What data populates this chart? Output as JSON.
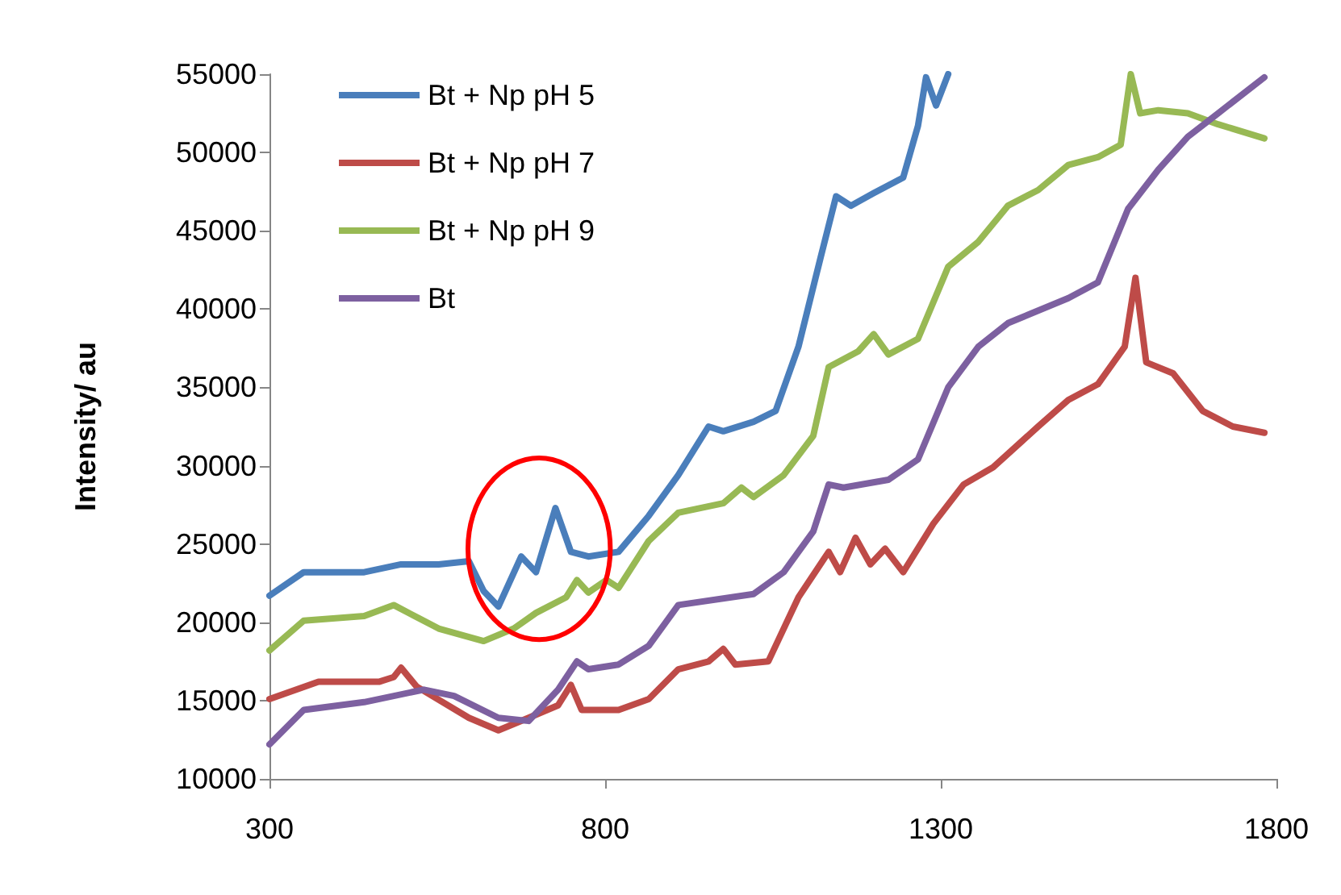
{
  "chart_data": {
    "type": "line",
    "ylabel": "Intensity/ au",
    "xlim": [
      300,
      1800
    ],
    "xticks": [
      300,
      800,
      1300,
      1800
    ],
    "ylim": [
      10000,
      55000
    ],
    "yticks": [
      10000,
      15000,
      20000,
      25000,
      30000,
      35000,
      40000,
      45000,
      50000,
      55000
    ],
    "grid": false,
    "legend": "top left",
    "marker": "none",
    "line_style": "solid",
    "series": [
      {
        "name": "Bt + Np pH 5",
        "color": "#4a7ebb",
        "x": [
          300,
          351,
          441,
          496,
          552,
          597,
          619,
          641,
          675,
          697,
          726,
          749,
          775,
          820,
          865,
          909,
          954,
          976,
          1021,
          1054,
          1088,
          1121,
          1144,
          1166,
          1200,
          1244,
          1266,
          1278,
          1293,
          1311
        ],
        "values": [
          21700,
          23200,
          23200,
          23700,
          23700,
          23900,
          22000,
          21000,
          24200,
          23200,
          27300,
          24500,
          24200,
          24500,
          26800,
          29400,
          32500,
          32200,
          32800,
          33500,
          37600,
          43300,
          47200,
          46600,
          47400,
          48400,
          51700,
          54800,
          53000,
          55000
        ]
      },
      {
        "name": "Bt + Np pH 7",
        "color": "#be4b48",
        "x": [
          300,
          373,
          463,
          485,
          496,
          519,
          597,
          641,
          686,
          730,
          749,
          765,
          820,
          865,
          909,
          954,
          976,
          994,
          1043,
          1088,
          1133,
          1150,
          1173,
          1195,
          1217,
          1244,
          1289,
          1334,
          1378,
          1445,
          1490,
          1534,
          1574,
          1590,
          1606,
          1646,
          1690,
          1735,
          1782
        ],
        "values": [
          15100,
          16200,
          16200,
          16500,
          17100,
          15900,
          13900,
          13100,
          13900,
          14700,
          16000,
          14400,
          14400,
          15100,
          17000,
          17500,
          18300,
          17300,
          17500,
          21600,
          24500,
          23200,
          25400,
          23700,
          24700,
          23200,
          26300,
          28800,
          29900,
          32500,
          34200,
          35200,
          37600,
          42000,
          36600,
          35900,
          33500,
          32500,
          32100
        ]
      },
      {
        "name": "Bt + Np pH 9",
        "color": "#98b954",
        "x": [
          300,
          351,
          441,
          485,
          552,
          619,
          664,
          697,
          742,
          758,
          775,
          802,
          820,
          865,
          909,
          976,
          1003,
          1021,
          1066,
          1110,
          1133,
          1177,
          1200,
          1222,
          1266,
          1311,
          1356,
          1400,
          1445,
          1490,
          1534,
          1568,
          1583,
          1597,
          1624,
          1668,
          1713,
          1782
        ],
        "values": [
          18200,
          20100,
          20400,
          21100,
          19600,
          18800,
          19600,
          20600,
          21600,
          22700,
          21900,
          22700,
          22200,
          25200,
          27000,
          27600,
          28600,
          28000,
          29400,
          31900,
          36300,
          37300,
          38400,
          37100,
          38100,
          42700,
          44300,
          46600,
          47600,
          49200,
          49700,
          50500,
          55000,
          52500,
          52700,
          52500,
          51800,
          50900
        ]
      },
      {
        "name": "Bt",
        "color": "#7d60a0",
        "x": [
          300,
          351,
          441,
          530,
          575,
          641,
          686,
          730,
          758,
          775,
          820,
          865,
          909,
          1021,
          1066,
          1110,
          1133,
          1155,
          1222,
          1266,
          1311,
          1356,
          1400,
          1490,
          1534,
          1579,
          1624,
          1668,
          1713,
          1782
        ],
        "values": [
          12200,
          14400,
          14900,
          15700,
          15300,
          13900,
          13700,
          15700,
          17500,
          17000,
          17300,
          18500,
          21100,
          21800,
          23200,
          25800,
          28800,
          28600,
          29100,
          30400,
          35000,
          37600,
          39100,
          40700,
          41700,
          46400,
          48900,
          51000,
          52500,
          54800
        ]
      }
    ]
  }
}
